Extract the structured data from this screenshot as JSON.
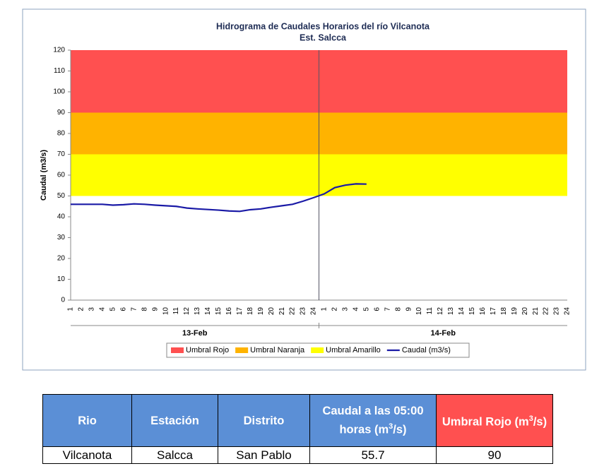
{
  "chart_data": {
    "type": "line",
    "title": "Hidrograma de Caudales Horarios del río Vilcanota",
    "subtitle": "Est. Salcca",
    "y_label": "Caudal  (m3/s)",
    "groups": [
      "13-Feb",
      "14-Feb"
    ],
    "categories": [
      1,
      2,
      3,
      4,
      5,
      6,
      7,
      8,
      9,
      10,
      11,
      12,
      13,
      14,
      15,
      16,
      17,
      18,
      19,
      20,
      21,
      22,
      23,
      24,
      1,
      2,
      3,
      4,
      5,
      6,
      7,
      8,
      9,
      10,
      11,
      12,
      13,
      14,
      15,
      16,
      17,
      18,
      19,
      20,
      21,
      22,
      23,
      24
    ],
    "ylim": [
      0,
      120
    ],
    "yticks": [
      0,
      10,
      20,
      30,
      40,
      50,
      60,
      70,
      80,
      90,
      100,
      110,
      120
    ],
    "thresholds": [
      {
        "name": "Umbral Rojo",
        "color": "#ff5050",
        "value": 90
      },
      {
        "name": "Umbral Naranja",
        "color": "#ffb300",
        "value": 70
      },
      {
        "name": "Umbral Amarillo",
        "color": "#ffff00",
        "value": 50
      }
    ],
    "series": [
      {
        "name": "Caudal (m3/s)",
        "color": "#1a1aa6",
        "values": [
          46,
          46,
          46,
          46,
          45.6,
          45.8,
          46.2,
          46,
          45.6,
          45.3,
          45,
          44.2,
          43.8,
          43.5,
          43.2,
          42.8,
          42.6,
          43.4,
          43.8,
          44.6,
          45.3,
          46,
          47.5,
          49.2,
          51,
          54,
          55.2,
          55.8,
          55.7,
          null,
          null,
          null,
          null,
          null,
          null,
          null,
          null,
          null,
          null,
          null,
          null,
          null,
          null,
          null,
          null,
          null,
          null,
          null
        ]
      }
    ]
  },
  "table": {
    "header": [
      "Rio",
      "Estación",
      "Distrito",
      [
        "Caudal a las 05:00 horas (m",
        "3",
        "/s)"
      ],
      [
        "Umbral Rojo (m",
        "3",
        "/s)"
      ]
    ],
    "rows": [
      [
        "Vilcanota",
        "Salcca",
        "San Pablo",
        "55.7",
        "90"
      ]
    ]
  }
}
